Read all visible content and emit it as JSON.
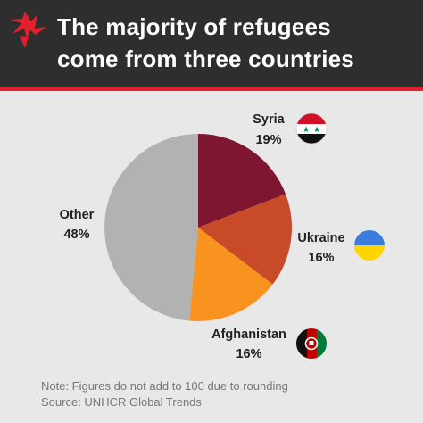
{
  "header": {
    "title_line1": "The majority of refugees",
    "title_line2": "come from three countries",
    "background": "#2e2e2e",
    "rule_color": "#e0202b",
    "logo_icon": "sbs-logo-icon"
  },
  "chart_data": {
    "type": "pie",
    "categories": [
      "Syria",
      "Ukraine",
      "Afghanistan",
      "Other"
    ],
    "values": [
      19,
      16,
      16,
      48
    ],
    "labels": [
      "19%",
      "16%",
      "16%",
      "48%"
    ],
    "colors": [
      "#7e1631",
      "#c94a27",
      "#f7931e",
      "#b2b2b2"
    ],
    "title": "The majority of refugees come from three countries",
    "legend": "none",
    "annotations": [
      "Note: Figures do not add to 100 due to rounding",
      "Source: UNHCR Global Trends"
    ]
  },
  "flags": {
    "syria": "syria-flag-icon",
    "ukraine": "ukraine-flag-icon",
    "afghanistan": "afghanistan-flag-icon"
  },
  "footer": {
    "note": "Note: Figures do not add to 100 due to rounding",
    "source": "Source: UNHCR Global Trends"
  }
}
